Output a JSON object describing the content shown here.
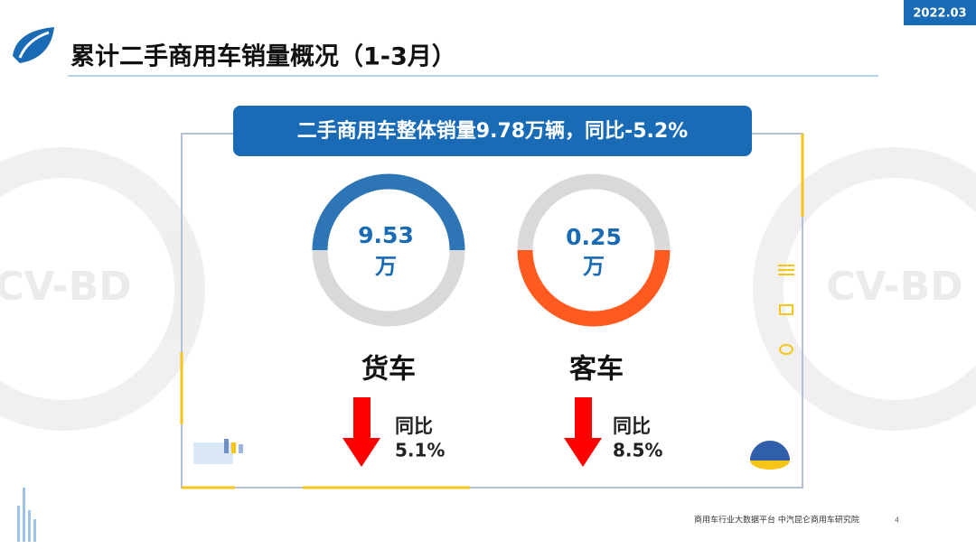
{
  "header": {
    "date": "2022.03",
    "title": "累计二手商用车销量概况（1-3月）"
  },
  "watermark": "CV-BD",
  "banner": "二手商用车整体销量9.78万辆，同比-5.2%",
  "items": [
    {
      "value": "9.53",
      "unit": "万",
      "label": "货车",
      "change_label": "同比",
      "change": "5.1%"
    },
    {
      "value": "0.25",
      "unit": "万",
      "label": "客车",
      "change_label": "同比",
      "change": "8.5%"
    }
  ],
  "footer": {
    "source": "商用车行业大数据平台   中汽昆仑商用车研究院",
    "page": "4"
  }
}
